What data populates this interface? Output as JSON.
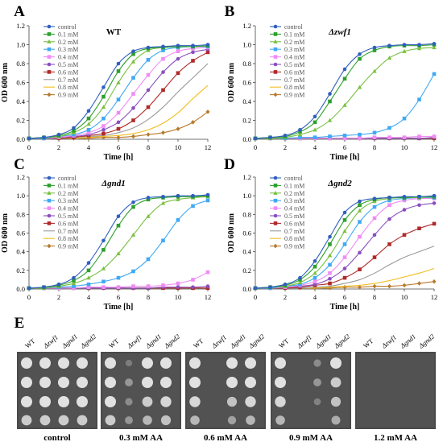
{
  "figure": {
    "common": {
      "x": [
        0,
        1,
        2,
        3,
        4,
        5,
        6,
        7,
        8,
        9,
        10,
        11,
        12
      ],
      "xlim": [
        0,
        12
      ],
      "ylim": [
        0,
        1.2
      ],
      "xticks": [
        "0",
        "2",
        "4",
        "6",
        "8",
        "10",
        "12"
      ],
      "yticks": [
        "0.0",
        "0.2",
        "0.4",
        "0.6",
        "0.8",
        "1.0",
        "1.2"
      ],
      "xlabel": "Time [h]",
      "ylabel": "OD 600 nm",
      "legend_position": "top-left",
      "grid": false,
      "series_names": [
        "control",
        "0.1 mM",
        "0.2 mM",
        "0.3 mM",
        "0.4 mM",
        "0.5 mM",
        "0.6 mM",
        "0.7 mM",
        "0.8 mM",
        "0.9 mM"
      ],
      "series_colors": [
        "#2f5fbf",
        "#2ca02c",
        "#79c040",
        "#3fa9f5",
        "#f08cf5",
        "#8a4fbf",
        "#b02a2a",
        "#9a9a9a",
        "#f2bd1d",
        "#b7792b"
      ],
      "series_markers": [
        "circle",
        "square",
        "triangle",
        "square",
        "square",
        "circle",
        "square",
        "none",
        "none",
        "diamond"
      ]
    },
    "panels": [
      {
        "letter": "A",
        "title": "WT",
        "title_italic": false
      },
      {
        "letter": "B",
        "title": "Δzwf1",
        "title_italic": true
      },
      {
        "letter": "C",
        "title": "Δgnd1",
        "title_italic": true
      },
      {
        "letter": "D",
        "title": "Δgnd2",
        "title_italic": true
      }
    ],
    "panel_e": {
      "letter": "E",
      "strain_labels": [
        "WT",
        "Δzwf1",
        "Δgnd1",
        "Δgnd2"
      ],
      "plates": [
        {
          "label": "control",
          "growth": [
            [
              1,
              1,
              1,
              1
            ],
            [
              1,
              1,
              1,
              1
            ],
            [
              1,
              1,
              1,
              1
            ],
            [
              0.8,
              0.8,
              0.8,
              0.8
            ]
          ]
        },
        {
          "label": "0.3 mM AA",
          "growth": [
            [
              1,
              0.05,
              1,
              1
            ],
            [
              1,
              0.3,
              1,
              1
            ],
            [
              1,
              0.2,
              0.8,
              0.9
            ],
            [
              0.8,
              0.3,
              0.6,
              0.7
            ]
          ]
        },
        {
          "label": "0.6 mM AA",
          "growth": [
            [
              1,
              0,
              1,
              1
            ],
            [
              1,
              0,
              1,
              1
            ],
            [
              0.9,
              0,
              0.7,
              0.9
            ],
            [
              0.6,
              0,
              0.4,
              0.6
            ]
          ]
        },
        {
          "label": "0.9 mM AA",
          "growth": [
            [
              1,
              0,
              0.2,
              1
            ],
            [
              1,
              0,
              0.3,
              0.8
            ],
            [
              0.9,
              0,
              0.1,
              0.7
            ],
            [
              0.6,
              0,
              0,
              0.5
            ]
          ]
        },
        {
          "label": "1.2 mM AA",
          "growth": [
            [
              0,
              0,
              0,
              0
            ],
            [
              0,
              0,
              0,
              0
            ],
            [
              0,
              0,
              0,
              0
            ],
            [
              0,
              0,
              0,
              0
            ]
          ]
        }
      ]
    }
  },
  "chart_data": [
    {
      "type": "line",
      "title": "WT",
      "xlabel": "Time [h]",
      "ylabel": "OD 600 nm",
      "x": [
        0,
        1,
        2,
        3,
        4,
        5,
        6,
        7,
        8,
        9,
        10,
        11,
        12
      ],
      "xlim": [
        0,
        12
      ],
      "ylim": [
        0,
        1.2
      ],
      "series": [
        {
          "name": "control",
          "values": [
            0.01,
            0.02,
            0.05,
            0.12,
            0.3,
            0.55,
            0.8,
            0.93,
            0.97,
            0.98,
            0.99,
            0.99,
            1.0
          ]
        },
        {
          "name": "0.1 mM",
          "values": [
            0.01,
            0.02,
            0.04,
            0.09,
            0.22,
            0.45,
            0.72,
            0.9,
            0.96,
            0.97,
            0.98,
            0.98,
            0.99
          ]
        },
        {
          "name": "0.2 mM",
          "values": [
            0.01,
            0.02,
            0.03,
            0.07,
            0.16,
            0.34,
            0.6,
            0.82,
            0.94,
            0.97,
            0.98,
            0.98,
            0.99
          ]
        },
        {
          "name": "0.3 mM",
          "values": [
            0.01,
            0.01,
            0.03,
            0.05,
            0.1,
            0.22,
            0.42,
            0.65,
            0.84,
            0.94,
            0.97,
            0.98,
            0.98
          ]
        },
        {
          "name": "0.4 mM",
          "values": [
            0.01,
            0.01,
            0.02,
            0.04,
            0.07,
            0.14,
            0.28,
            0.48,
            0.68,
            0.85,
            0.93,
            0.96,
            0.97
          ]
        },
        {
          "name": "0.5 mM",
          "values": [
            0.01,
            0.01,
            0.02,
            0.03,
            0.05,
            0.1,
            0.18,
            0.33,
            0.52,
            0.71,
            0.85,
            0.92,
            0.95
          ]
        },
        {
          "name": "0.6 mM",
          "values": [
            0.01,
            0.01,
            0.01,
            0.02,
            0.04,
            0.06,
            0.11,
            0.2,
            0.34,
            0.52,
            0.7,
            0.83,
            0.92
          ]
        },
        {
          "name": "0.7 mM",
          "values": [
            0.01,
            0.01,
            0.01,
            0.02,
            0.03,
            0.04,
            0.07,
            0.12,
            0.21,
            0.34,
            0.5,
            0.65,
            0.8
          ]
        },
        {
          "name": "0.8 mM",
          "values": [
            0.01,
            0.01,
            0.01,
            0.01,
            0.02,
            0.03,
            0.04,
            0.06,
            0.1,
            0.17,
            0.28,
            0.43,
            0.57
          ]
        },
        {
          "name": "0.9 mM",
          "values": [
            0.01,
            0.01,
            0.01,
            0.01,
            0.01,
            0.02,
            0.02,
            0.03,
            0.05,
            0.07,
            0.11,
            0.18,
            0.29
          ]
        }
      ]
    },
    {
      "type": "line",
      "title": "Δzwf1",
      "xlabel": "Time [h]",
      "ylabel": "OD 600 nm",
      "x": [
        0,
        1,
        2,
        3,
        4,
        5,
        6,
        7,
        8,
        9,
        10,
        11,
        12
      ],
      "xlim": [
        0,
        12
      ],
      "ylim": [
        0,
        1.2
      ],
      "series": [
        {
          "name": "control",
          "values": [
            0.01,
            0.02,
            0.04,
            0.1,
            0.24,
            0.48,
            0.74,
            0.9,
            0.97,
            0.99,
            1.0,
            1.0,
            1.01
          ]
        },
        {
          "name": "0.1 mM",
          "values": [
            0.01,
            0.02,
            0.03,
            0.08,
            0.18,
            0.4,
            0.64,
            0.85,
            0.94,
            0.98,
            0.99,
            0.99,
            1.0
          ]
        },
        {
          "name": "0.2 mM",
          "values": [
            0.01,
            0.01,
            0.02,
            0.05,
            0.1,
            0.2,
            0.36,
            0.55,
            0.72,
            0.86,
            0.93,
            0.96,
            0.97
          ]
        },
        {
          "name": "0.3 mM",
          "values": [
            0.01,
            0.01,
            0.01,
            0.02,
            0.02,
            0.03,
            0.04,
            0.05,
            0.07,
            0.12,
            0.22,
            0.42,
            0.69
          ]
        },
        {
          "name": "0.4 mM",
          "values": [
            0.01,
            0.01,
            0.01,
            0.01,
            0.01,
            0.01,
            0.01,
            0.01,
            0.02,
            0.02,
            0.02,
            0.03,
            0.03
          ]
        },
        {
          "name": "0.5 mM",
          "values": [
            0.01,
            0.01,
            0.01,
            0.01,
            0.01,
            0.01,
            0.01,
            0.01,
            0.01,
            0.01,
            0.01,
            0.01,
            0.02
          ]
        },
        {
          "name": "0.6 mM",
          "values": [
            0.01,
            0.01,
            0.01,
            0.01,
            0.01,
            0.01,
            0.01,
            0.01,
            0.01,
            0.01,
            0.01,
            0.01,
            0.01
          ]
        },
        {
          "name": "0.7 mM",
          "values": [
            0.01,
            0.01,
            0.01,
            0.01,
            0.01,
            0.01,
            0.01,
            0.01,
            0.01,
            0.01,
            0.01,
            0.01,
            0.01
          ]
        },
        {
          "name": "0.8 mM",
          "values": [
            0.01,
            0.01,
            0.01,
            0.01,
            0.01,
            0.01,
            0.01,
            0.01,
            0.01,
            0.01,
            0.01,
            0.01,
            0.01
          ]
        },
        {
          "name": "0.9 mM",
          "values": [
            0.01,
            0.01,
            0.01,
            0.01,
            0.01,
            0.01,
            0.01,
            0.01,
            0.01,
            0.01,
            0.01,
            0.01,
            0.01
          ]
        }
      ]
    },
    {
      "type": "line",
      "title": "Δgnd1",
      "xlabel": "Time [h]",
      "ylabel": "OD 600 nm",
      "x": [
        0,
        1,
        2,
        3,
        4,
        5,
        6,
        7,
        8,
        9,
        10,
        11,
        12
      ],
      "xlim": [
        0,
        12
      ],
      "ylim": [
        0,
        1.2
      ],
      "series": [
        {
          "name": "control",
          "values": [
            0.01,
            0.02,
            0.05,
            0.12,
            0.28,
            0.52,
            0.78,
            0.93,
            0.98,
            0.99,
            1.0,
            1.0,
            1.01
          ]
        },
        {
          "name": "0.1 mM",
          "values": [
            0.01,
            0.02,
            0.04,
            0.09,
            0.2,
            0.42,
            0.68,
            0.88,
            0.96,
            0.98,
            0.99,
            0.99,
            1.0
          ]
        },
        {
          "name": "0.2 mM",
          "values": [
            0.01,
            0.01,
            0.03,
            0.06,
            0.12,
            0.22,
            0.38,
            0.58,
            0.78,
            0.92,
            0.96,
            0.98,
            0.99
          ]
        },
        {
          "name": "0.3 mM",
          "values": [
            0.01,
            0.01,
            0.02,
            0.03,
            0.05,
            0.08,
            0.12,
            0.19,
            0.32,
            0.52,
            0.74,
            0.89,
            0.95
          ]
        },
        {
          "name": "0.4 mM",
          "values": [
            0.01,
            0.01,
            0.01,
            0.01,
            0.02,
            0.02,
            0.02,
            0.03,
            0.03,
            0.04,
            0.06,
            0.1,
            0.18
          ]
        },
        {
          "name": "0.5 mM",
          "values": [
            0.01,
            0.01,
            0.01,
            0.01,
            0.01,
            0.01,
            0.01,
            0.01,
            0.01,
            0.02,
            0.02,
            0.02,
            0.03
          ]
        },
        {
          "name": "0.6 mM",
          "values": [
            0.01,
            0.01,
            0.01,
            0.01,
            0.01,
            0.01,
            0.01,
            0.01,
            0.01,
            0.01,
            0.01,
            0.01,
            0.01
          ]
        },
        {
          "name": "0.7 mM",
          "values": [
            0.01,
            0.01,
            0.01,
            0.01,
            0.01,
            0.01,
            0.01,
            0.01,
            0.01,
            0.01,
            0.01,
            0.01,
            0.01
          ]
        },
        {
          "name": "0.8 mM",
          "values": [
            0.01,
            0.01,
            0.01,
            0.01,
            0.01,
            0.01,
            0.01,
            0.01,
            0.01,
            0.01,
            0.01,
            0.01,
            0.01
          ]
        },
        {
          "name": "0.9 mM",
          "values": [
            0.01,
            0.01,
            0.01,
            0.01,
            0.01,
            0.01,
            0.01,
            0.01,
            0.01,
            0.01,
            0.01,
            0.01,
            0.01
          ]
        }
      ]
    },
    {
      "type": "line",
      "title": "Δgnd2",
      "xlabel": "Time [h]",
      "ylabel": "OD 600 nm",
      "x": [
        0,
        1,
        2,
        3,
        4,
        5,
        6,
        7,
        8,
        9,
        10,
        11,
        12
      ],
      "xlim": [
        0,
        12
      ],
      "ylim": [
        0,
        1.2
      ],
      "series": [
        {
          "name": "control",
          "values": [
            0.01,
            0.02,
            0.05,
            0.12,
            0.3,
            0.56,
            0.82,
            0.94,
            0.97,
            0.98,
            0.99,
            0.99,
            1.0
          ]
        },
        {
          "name": "0.1 mM",
          "values": [
            0.01,
            0.02,
            0.04,
            0.1,
            0.24,
            0.48,
            0.74,
            0.9,
            0.96,
            0.98,
            0.98,
            0.99,
            0.99
          ]
        },
        {
          "name": "0.2 mM",
          "values": [
            0.01,
            0.02,
            0.03,
            0.07,
            0.17,
            0.36,
            0.62,
            0.84,
            0.94,
            0.97,
            0.98,
            0.98,
            0.99
          ]
        },
        {
          "name": "0.3 mM",
          "values": [
            0.01,
            0.01,
            0.03,
            0.05,
            0.12,
            0.26,
            0.48,
            0.72,
            0.88,
            0.95,
            0.97,
            0.98,
            0.98
          ]
        },
        {
          "name": "0.4 mM",
          "values": [
            0.01,
            0.01,
            0.02,
            0.04,
            0.08,
            0.17,
            0.34,
            0.56,
            0.76,
            0.9,
            0.95,
            0.97,
            0.97
          ]
        },
        {
          "name": "0.5 mM",
          "values": [
            0.01,
            0.01,
            0.02,
            0.03,
            0.05,
            0.11,
            0.22,
            0.39,
            0.58,
            0.75,
            0.85,
            0.9,
            0.92
          ]
        },
        {
          "name": "0.6 mM",
          "values": [
            0.01,
            0.01,
            0.01,
            0.02,
            0.04,
            0.06,
            0.12,
            0.21,
            0.34,
            0.48,
            0.58,
            0.65,
            0.7
          ]
        },
        {
          "name": "0.7 mM",
          "values": [
            0.01,
            0.01,
            0.01,
            0.01,
            0.02,
            0.03,
            0.06,
            0.1,
            0.17,
            0.26,
            0.34,
            0.4,
            0.46
          ]
        },
        {
          "name": "0.8 mM",
          "values": [
            0.01,
            0.01,
            0.01,
            0.01,
            0.01,
            0.02,
            0.03,
            0.04,
            0.06,
            0.09,
            0.13,
            0.17,
            0.22
          ]
        },
        {
          "name": "0.9 mM",
          "values": [
            0.01,
            0.01,
            0.01,
            0.01,
            0.01,
            0.01,
            0.02,
            0.02,
            0.03,
            0.03,
            0.04,
            0.06,
            0.08
          ]
        }
      ]
    }
  ]
}
